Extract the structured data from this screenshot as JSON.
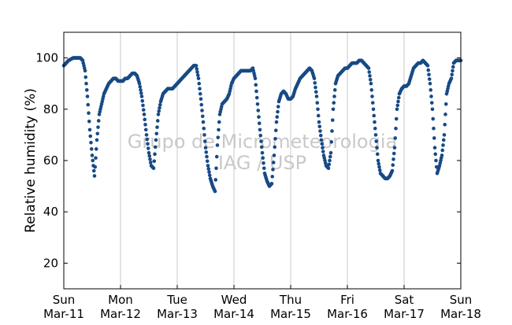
{
  "chart_data": {
    "type": "scatter",
    "title": "",
    "ylabel": "Relative humidity (%)",
    "xlabel": "",
    "ylim": [
      10,
      110
    ],
    "yticks": [
      20,
      40,
      60,
      80,
      100
    ],
    "xlim": [
      "2012-03-11",
      "2012-03-18"
    ],
    "xtick_labels": [
      {
        "day": "Sun",
        "date": "Mar-11"
      },
      {
        "day": "Mon",
        "date": "Mar-12"
      },
      {
        "day": "Tue",
        "date": "Mar-13"
      },
      {
        "day": "Wed",
        "date": "Mar-14"
      },
      {
        "day": "Thu",
        "date": "Mar-15"
      },
      {
        "day": "Fri",
        "date": "Mar-16"
      },
      {
        "day": "Sat",
        "date": "Mar-17"
      },
      {
        "day": "Sun",
        "date": "Mar-18"
      }
    ],
    "grid": "vertical",
    "watermark": [
      "Grupo de Micrometeorologia",
      "IAG / USP"
    ],
    "colors": {
      "marker": "#174a86",
      "grid": "#c8c8c8",
      "watermark": "#c9c9c9"
    },
    "series": [
      {
        "x": [
          "2012-03-11 00:00",
          "2012-03-11 01:00",
          "2012-03-11 02:00",
          "2012-03-11 03:00",
          "2012-03-11 04:00",
          "2012-03-11 05:00",
          "2012-03-11 06:00",
          "2012-03-11 07:00",
          "2012-03-11 08:00",
          "2012-03-11 09:00",
          "2012-03-11 10:00",
          "2012-03-11 11:00",
          "2012-03-11 12:00",
          "2012-03-11 13:00",
          "2012-03-11 14:00",
          "2012-03-11 15:00",
          "2012-03-11 16:00",
          "2012-03-11 17:00",
          "2012-03-11 18:00",
          "2012-03-11 19:00",
          "2012-03-11 20:00",
          "2012-03-11 21:00",
          "2012-03-11 22:00",
          "2012-03-11 23:00",
          "2012-03-12 00:00",
          "2012-03-12 01:00",
          "2012-03-12 02:00",
          "2012-03-12 03:00",
          "2012-03-12 04:00",
          "2012-03-12 05:00",
          "2012-03-12 06:00",
          "2012-03-12 07:00",
          "2012-03-12 08:00",
          "2012-03-12 09:00",
          "2012-03-12 10:00",
          "2012-03-12 11:00",
          "2012-03-12 12:00",
          "2012-03-12 13:00",
          "2012-03-12 14:00",
          "2012-03-12 15:00",
          "2012-03-12 16:00",
          "2012-03-12 17:00",
          "2012-03-12 18:00",
          "2012-03-12 19:00",
          "2012-03-12 20:00",
          "2012-03-12 21:00",
          "2012-03-12 22:00",
          "2012-03-12 23:00",
          "2012-03-13 00:00",
          "2012-03-13 01:00",
          "2012-03-13 02:00",
          "2012-03-13 03:00",
          "2012-03-13 04:00",
          "2012-03-13 05:00",
          "2012-03-13 06:00",
          "2012-03-13 07:00",
          "2012-03-13 08:00",
          "2012-03-13 09:00",
          "2012-03-13 10:00",
          "2012-03-13 11:00",
          "2012-03-13 12:00",
          "2012-03-13 13:00",
          "2012-03-13 14:00",
          "2012-03-13 15:00",
          "2012-03-13 16:00",
          "2012-03-13 17:00",
          "2012-03-13 18:00",
          "2012-03-13 19:00",
          "2012-03-13 20:00",
          "2012-03-13 21:00",
          "2012-03-13 22:00",
          "2012-03-13 23:00",
          "2012-03-14 00:00",
          "2012-03-14 01:00",
          "2012-03-14 02:00",
          "2012-03-14 03:00",
          "2012-03-14 04:00",
          "2012-03-14 05:00",
          "2012-03-14 06:00",
          "2012-03-14 07:00",
          "2012-03-14 08:00",
          "2012-03-14 09:00",
          "2012-03-14 10:00",
          "2012-03-14 11:00",
          "2012-03-14 12:00",
          "2012-03-14 13:00",
          "2012-03-14 14:00",
          "2012-03-14 15:00",
          "2012-03-14 16:00",
          "2012-03-14 17:00",
          "2012-03-14 18:00",
          "2012-03-14 19:00",
          "2012-03-14 20:00",
          "2012-03-14 21:00",
          "2012-03-14 22:00",
          "2012-03-14 23:00",
          "2012-03-15 00:00",
          "2012-03-15 01:00",
          "2012-03-15 02:00",
          "2012-03-15 03:00",
          "2012-03-15 04:00",
          "2012-03-15 05:00",
          "2012-03-15 06:00",
          "2012-03-15 07:00",
          "2012-03-15 08:00",
          "2012-03-15 09:00",
          "2012-03-15 10:00",
          "2012-03-15 11:00",
          "2012-03-15 12:00",
          "2012-03-15 13:00",
          "2012-03-15 14:00",
          "2012-03-15 15:00",
          "2012-03-15 16:00",
          "2012-03-15 17:00",
          "2012-03-15 18:00",
          "2012-03-15 19:00",
          "2012-03-15 20:00",
          "2012-03-15 21:00",
          "2012-03-15 22:00",
          "2012-03-15 23:00",
          "2012-03-16 00:00",
          "2012-03-16 01:00",
          "2012-03-16 02:00",
          "2012-03-16 03:00",
          "2012-03-16 04:00",
          "2012-03-16 05:00",
          "2012-03-16 06:00",
          "2012-03-16 07:00",
          "2012-03-16 08:00",
          "2012-03-16 09:00",
          "2012-03-16 10:00",
          "2012-03-16 11:00",
          "2012-03-16 12:00",
          "2012-03-16 13:00",
          "2012-03-16 14:00",
          "2012-03-16 15:00",
          "2012-03-16 16:00",
          "2012-03-16 17:00",
          "2012-03-16 18:00",
          "2012-03-16 19:00",
          "2012-03-16 20:00",
          "2012-03-16 21:00",
          "2012-03-16 22:00",
          "2012-03-16 23:00",
          "2012-03-17 00:00",
          "2012-03-17 01:00",
          "2012-03-17 02:00",
          "2012-03-17 03:00",
          "2012-03-17 04:00",
          "2012-03-17 05:00",
          "2012-03-17 06:00",
          "2012-03-17 07:00",
          "2012-03-17 08:00",
          "2012-03-17 09:00",
          "2012-03-17 10:00",
          "2012-03-17 11:00",
          "2012-03-17 12:00",
          "2012-03-17 13:00",
          "2012-03-17 14:00",
          "2012-03-17 15:00",
          "2012-03-17 16:00",
          "2012-03-17 17:00",
          "2012-03-17 18:00",
          "2012-03-17 19:00",
          "2012-03-17 20:00",
          "2012-03-17 21:00",
          "2012-03-17 22:00",
          "2012-03-17 23:00",
          "2012-03-18 00:00"
        ],
        "y": [
          97,
          98,
          99,
          99.5,
          100,
          100,
          100,
          100,
          99,
          95,
          85,
          72,
          62,
          54,
          68,
          78,
          82,
          86,
          88,
          90,
          91,
          92,
          92,
          91,
          91,
          91,
          92,
          92,
          93,
          94,
          94,
          93,
          90,
          85,
          78,
          70,
          63,
          58,
          57,
          68,
          78,
          83,
          86,
          87,
          88,
          88,
          88,
          89,
          90,
          91,
          92,
          93,
          94,
          95,
          96,
          97,
          97,
          92,
          84,
          75,
          65,
          58,
          53,
          50,
          48,
          66,
          78,
          82,
          83,
          84,
          86,
          90,
          92,
          93,
          94,
          95,
          95,
          95,
          95,
          95,
          96,
          92,
          82,
          72,
          63,
          55,
          52,
          50,
          51,
          62,
          75,
          83,
          86,
          87,
          86,
          84,
          84,
          85,
          88,
          90,
          92,
          93,
          94,
          95,
          96,
          95,
          92,
          85,
          75,
          68,
          62,
          58,
          57,
          63,
          80,
          90,
          93,
          94,
          95,
          96,
          96,
          97,
          98,
          98,
          98,
          99,
          99,
          98,
          97,
          96,
          90,
          80,
          70,
          60,
          55,
          54,
          53,
          53,
          54,
          56,
          65,
          80,
          86,
          88,
          89,
          89,
          90,
          93,
          96,
          97,
          98,
          98,
          99,
          98,
          97,
          90,
          80,
          65,
          55,
          58,
          62,
          70,
          86,
          90,
          92,
          98,
          99,
          99,
          99
        ]
      }
    ]
  }
}
